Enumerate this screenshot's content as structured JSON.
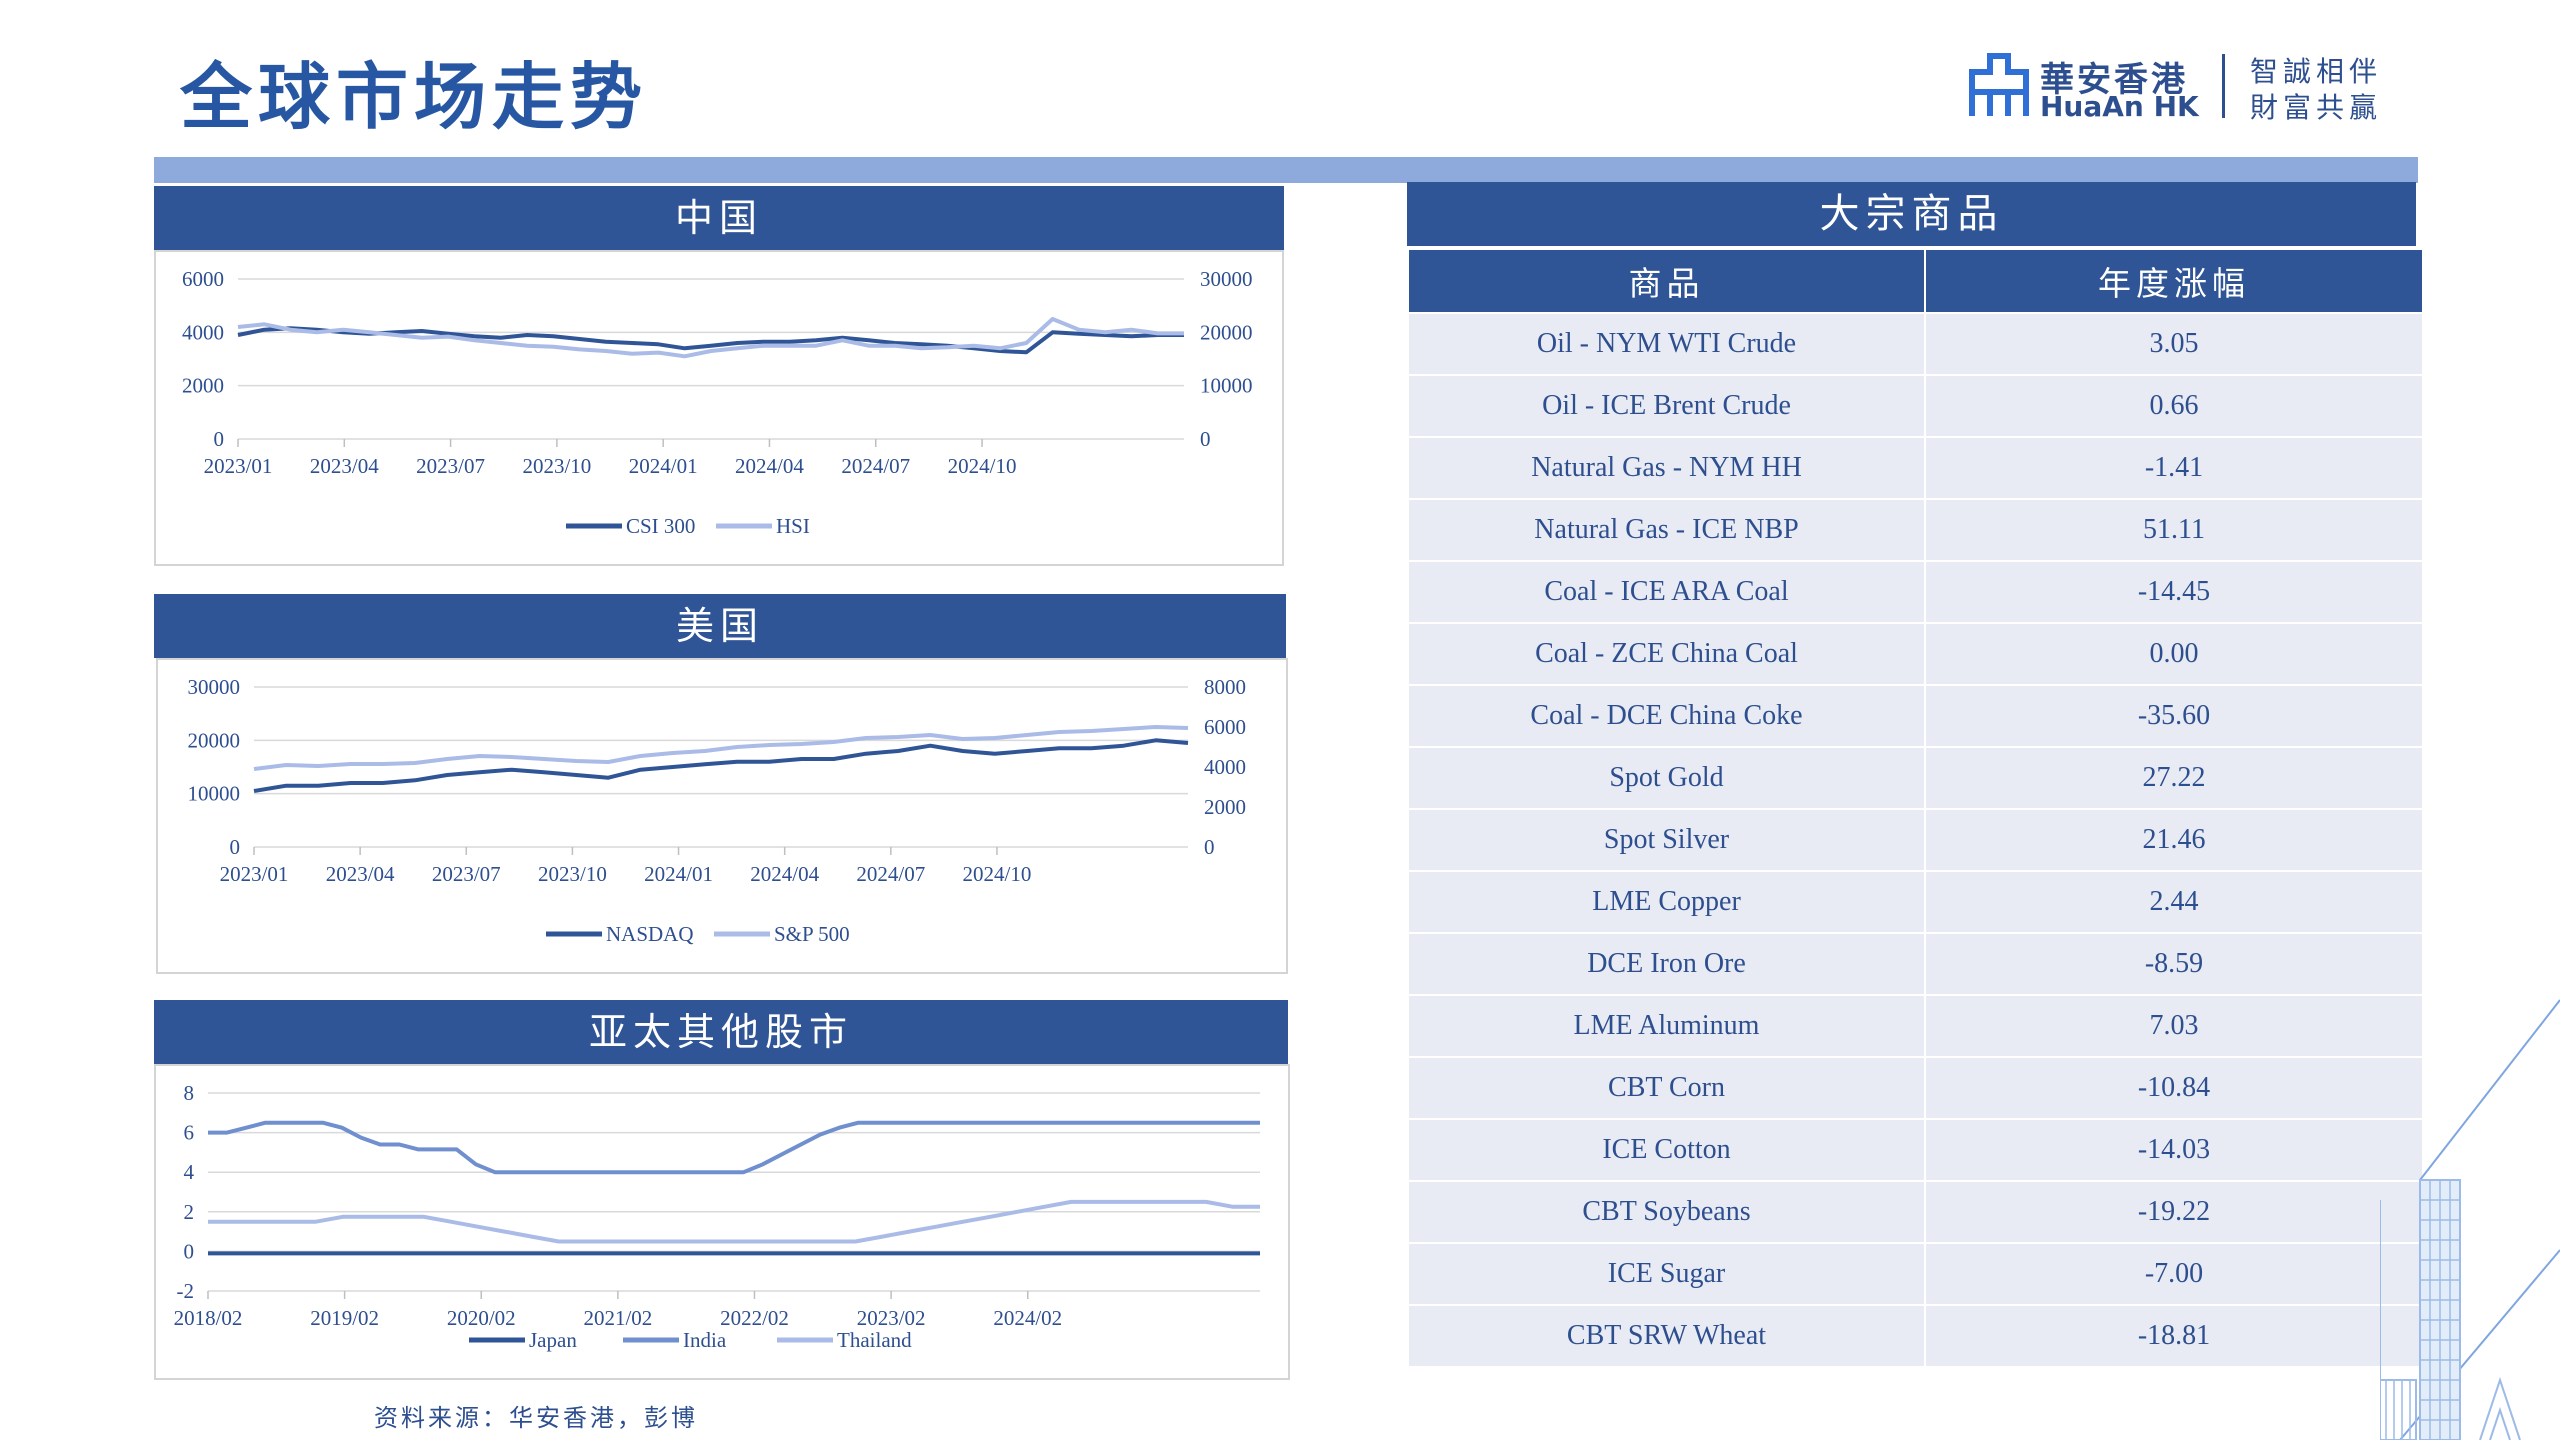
{
  "slide": {
    "title": "全球市场走势",
    "source_note": "资料来源：华安香港，彭博"
  },
  "logo": {
    "name_cn": "華安香港",
    "name_en": "HuaAn HK",
    "tagline_1": "智誠相伴",
    "tagline_2": "財富共贏"
  },
  "colors": {
    "header": "#2f5597",
    "band": "#8ea9dc",
    "series_dark": "#2f5597",
    "series_mid": "#6f8fcf",
    "series_light": "#a9bbe6",
    "row_bg": "#e8ebf3"
  },
  "panels": {
    "china": "中国",
    "usa": "美国",
    "apac": "亚太其他股市"
  },
  "chart_data": [
    {
      "type": "line",
      "title": "中国",
      "x_ticks": [
        "2023/01",
        "2023/04",
        "2023/07",
        "2023/10",
        "2024/01",
        "2024/04",
        "2024/07",
        "2024/10"
      ],
      "y_left": {
        "ticks": [
          "0",
          "2000",
          "4000",
          "6000"
        ],
        "range": [
          0,
          6000
        ]
      },
      "y_right": {
        "ticks": [
          "0",
          "10000",
          "20000",
          "30000"
        ],
        "range": [
          0,
          30000
        ]
      },
      "legend_position": "bottom",
      "series": [
        {
          "name": "CSI 300",
          "axis": "left",
          "color": "#2f5597",
          "values": [
            3900,
            4100,
            4150,
            4100,
            4000,
            3950,
            4000,
            4050,
            3950,
            3850,
            3800,
            3900,
            3850,
            3750,
            3650,
            3600,
            3550,
            3400,
            3500,
            3600,
            3650,
            3650,
            3700,
            3800,
            3700,
            3600,
            3550,
            3500,
            3400,
            3300,
            3250,
            4000,
            3950,
            3900,
            3850,
            3900,
            3900
          ]
        },
        {
          "name": "HSI",
          "axis": "right",
          "color": "#a9bbe6",
          "values": [
            21000,
            21500,
            20500,
            20000,
            20500,
            20000,
            19500,
            19000,
            19200,
            18500,
            18000,
            17500,
            17300,
            16800,
            16500,
            16000,
            16200,
            15500,
            16500,
            17000,
            17500,
            17500,
            17500,
            18500,
            17500,
            17500,
            17000,
            17200,
            17500,
            17000,
            18000,
            22500,
            20500,
            20000,
            20500,
            19800,
            19800
          ]
        }
      ]
    },
    {
      "type": "line",
      "title": "美国",
      "x_ticks": [
        "2023/01",
        "2023/04",
        "2023/07",
        "2023/10",
        "2024/01",
        "2024/04",
        "2024/07",
        "2024/10"
      ],
      "y_left": {
        "ticks": [
          "0",
          "10000",
          "20000",
          "30000"
        ],
        "range": [
          0,
          30000
        ]
      },
      "y_right": {
        "ticks": [
          "0",
          "2000",
          "4000",
          "6000",
          "8000"
        ],
        "range": [
          0,
          8000
        ]
      },
      "legend_position": "bottom",
      "series": [
        {
          "name": "NASDAQ",
          "axis": "left",
          "color": "#2f5597",
          "values": [
            10500,
            11500,
            11500,
            12000,
            12000,
            12500,
            13500,
            14000,
            14500,
            14000,
            13500,
            13000,
            14500,
            15000,
            15500,
            16000,
            16000,
            16500,
            16500,
            17500,
            18000,
            19000,
            18000,
            17500,
            18000,
            18500,
            18500,
            19000,
            20000,
            19500
          ]
        },
        {
          "name": "S&P 500",
          "axis": "right",
          "color": "#a9bbe6",
          "values": [
            3900,
            4100,
            4050,
            4150,
            4150,
            4200,
            4400,
            4550,
            4500,
            4400,
            4300,
            4250,
            4550,
            4700,
            4800,
            5000,
            5100,
            5150,
            5250,
            5450,
            5500,
            5600,
            5400,
            5450,
            5600,
            5750,
            5800,
            5900,
            6000,
            5950
          ]
        }
      ]
    },
    {
      "type": "line",
      "title": "亚太其他股市",
      "x_ticks": [
        "2018/02",
        "2019/02",
        "2020/02",
        "2021/02",
        "2022/02",
        "2023/02",
        "2024/02"
      ],
      "y": {
        "ticks": [
          "-2",
          "0",
          "2",
          "4",
          "6",
          "8"
        ],
        "range": [
          -2,
          8
        ]
      },
      "legend_position": "bottom",
      "series": [
        {
          "name": "Japan",
          "color": "#2f5597",
          "values": [
            -0.1,
            -0.1,
            -0.1,
            -0.1,
            -0.1,
            -0.1,
            -0.1,
            -0.1,
            -0.1,
            -0.1,
            -0.1,
            -0.1,
            -0.1,
            -0.1,
            -0.1,
            -0.1,
            -0.1,
            -0.1,
            -0.1,
            -0.1,
            -0.1,
            -0.1,
            -0.1,
            -0.1,
            -0.1,
            -0.1,
            -0.1,
            -0.1,
            -0.1
          ]
        },
        {
          "name": "India",
          "color": "#6f8fcf",
          "values": [
            6.0,
            6.0,
            6.25,
            6.5,
            6.5,
            6.5,
            6.5,
            6.25,
            5.75,
            5.4,
            5.4,
            5.15,
            5.15,
            5.15,
            4.4,
            4.0,
            4.0,
            4.0,
            4.0,
            4.0,
            4.0,
            4.0,
            4.0,
            4.0,
            4.0,
            4.0,
            4.0,
            4.0,
            4.0,
            4.4,
            4.9,
            5.4,
            5.9,
            6.25,
            6.5,
            6.5,
            6.5,
            6.5,
            6.5,
            6.5,
            6.5,
            6.5,
            6.5,
            6.5,
            6.5,
            6.5,
            6.5,
            6.5,
            6.5,
            6.5,
            6.5,
            6.5,
            6.5,
            6.5,
            6.5,
            6.5
          ]
        },
        {
          "name": "Thailand",
          "color": "#a9bbe6",
          "values": [
            1.5,
            1.5,
            1.5,
            1.5,
            1.5,
            1.75,
            1.75,
            1.75,
            1.75,
            1.5,
            1.25,
            1.0,
            0.75,
            0.5,
            0.5,
            0.5,
            0.5,
            0.5,
            0.5,
            0.5,
            0.5,
            0.5,
            0.5,
            0.5,
            0.5,
            0.75,
            1.0,
            1.25,
            1.5,
            1.75,
            2.0,
            2.25,
            2.5,
            2.5,
            2.5,
            2.5,
            2.5,
            2.5,
            2.25,
            2.25
          ]
        }
      ]
    },
    {
      "type": "table",
      "title": "大宗商品",
      "headers": [
        "商品",
        "年度涨幅"
      ],
      "rows": [
        [
          "Oil - NYM WTI Crude",
          "3.05"
        ],
        [
          "Oil - ICE Brent Crude",
          "0.66"
        ],
        [
          "Natural Gas - NYM HH",
          "-1.41"
        ],
        [
          "Natural Gas - ICE NBP",
          "51.11"
        ],
        [
          "Coal - ICE ARA Coal",
          "-14.45"
        ],
        [
          "Coal - ZCE China Coal",
          "0.00"
        ],
        [
          "Coal - DCE China Coke",
          "-35.60"
        ],
        [
          "Spot Gold",
          "27.22"
        ],
        [
          "Spot Silver",
          "21.46"
        ],
        [
          "LME Copper",
          "2.44"
        ],
        [
          "DCE Iron Ore",
          "-8.59"
        ],
        [
          "LME Aluminum",
          "7.03"
        ],
        [
          "CBT Corn",
          "-10.84"
        ],
        [
          "ICE Cotton",
          "-14.03"
        ],
        [
          "CBT Soybeans",
          "-19.22"
        ],
        [
          "ICE Sugar",
          "-7.00"
        ],
        [
          "CBT SRW Wheat",
          "-18.81"
        ]
      ]
    }
  ]
}
